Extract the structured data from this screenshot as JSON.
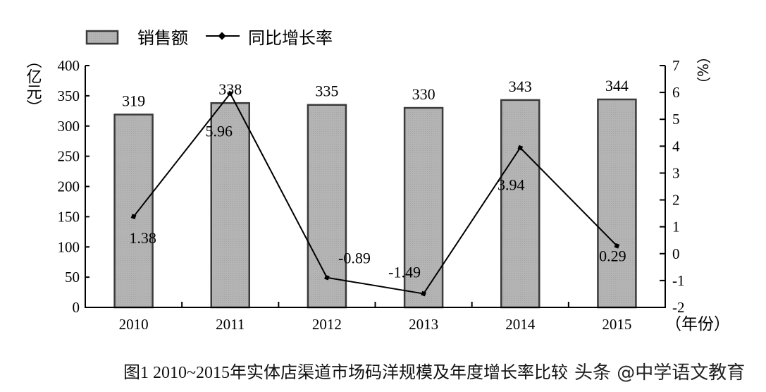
{
  "chart_data": {
    "type": "bar+line",
    "title": "",
    "caption": "图1 2010~2015年实体店渠道市场码洋规模及年度增长率比较",
    "categories": [
      "2010",
      "2011",
      "2012",
      "2013",
      "2014",
      "2015"
    ],
    "series": [
      {
        "name": "销售额",
        "type": "bar",
        "axis": "left",
        "values": [
          319,
          338,
          335,
          330,
          343,
          344
        ],
        "labels": [
          "319",
          "338",
          "335",
          "330",
          "343",
          "344"
        ]
      },
      {
        "name": "同比增长率",
        "type": "line",
        "axis": "right",
        "values": [
          1.38,
          5.96,
          -0.89,
          -1.49,
          3.94,
          0.29
        ],
        "labels": [
          "1.38",
          "5.96",
          "-0.89",
          "-1.49",
          "3.94",
          "0.29"
        ]
      }
    ],
    "y_left": {
      "label": "（亿元）",
      "min": 0,
      "max": 400,
      "ticks": [
        0,
        50,
        100,
        150,
        200,
        250,
        300,
        350,
        400
      ]
    },
    "y_right": {
      "label": "（%）",
      "min": -2,
      "max": 7,
      "ticks": [
        -2,
        -1,
        0,
        1,
        2,
        3,
        4,
        5,
        6,
        7
      ]
    },
    "xlabel": "（年份）",
    "legend": {
      "position": "top",
      "entries": [
        "销售额",
        "同比增长率"
      ]
    },
    "grid": false,
    "colors": {
      "bar_fill": "#b4b4b4",
      "bar_edge": "#3a3a3a",
      "line": "#000000"
    }
  },
  "watermark": "头条 @中学语文教育"
}
